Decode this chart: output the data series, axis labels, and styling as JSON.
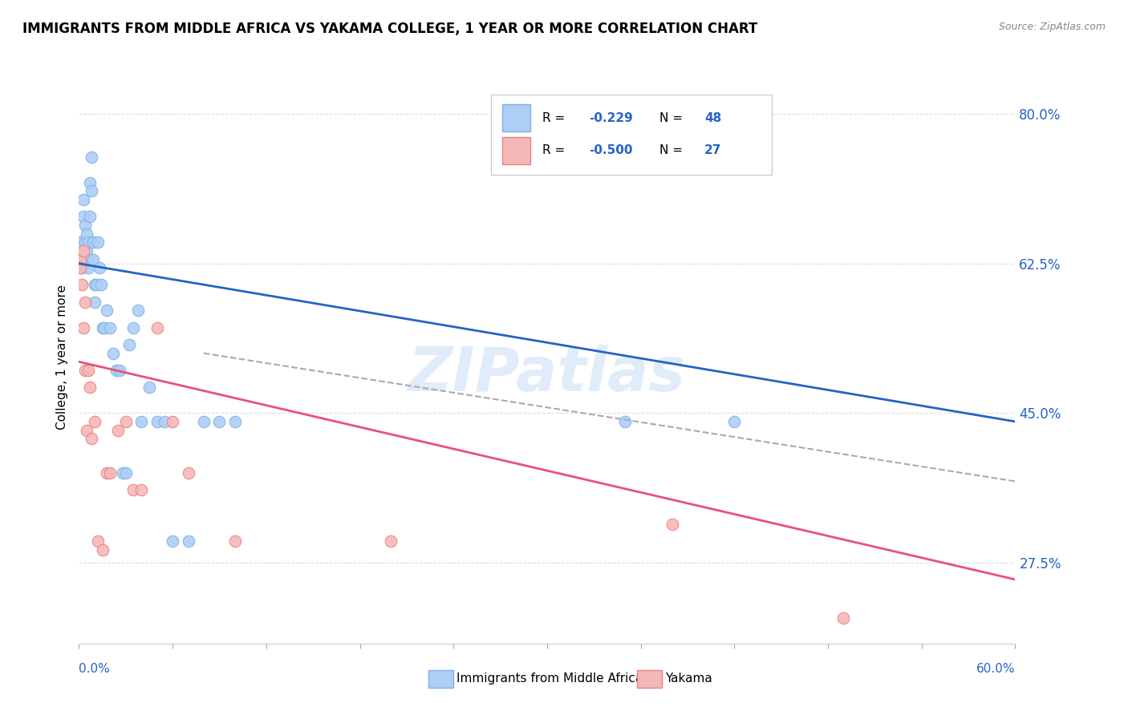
{
  "title": "IMMIGRANTS FROM MIDDLE AFRICA VS YAKAMA COLLEGE, 1 YEAR OR MORE CORRELATION CHART",
  "source": "Source: ZipAtlas.com",
  "ylabel": "College, 1 year or more",
  "ylabel_ticks": [
    "27.5%",
    "45.0%",
    "62.5%",
    "80.0%"
  ],
  "ylabel_tick_vals": [
    0.275,
    0.45,
    0.625,
    0.8
  ],
  "xlim": [
    0.0,
    0.6
  ],
  "ylim": [
    0.18,
    0.85
  ],
  "blue_scatter_color": "#aecef5",
  "blue_scatter_edge": "#7eb3e8",
  "pink_scatter_color": "#f5b8b8",
  "pink_scatter_edge": "#f08080",
  "blue_line_color": "#2563c7",
  "pink_line_color": "#e85080",
  "dashed_line_color": "#aaaaaa",
  "r_color": "#2563c7",
  "watermark_color": "#c8ddf5",
  "blue_scatter_x": [
    0.001,
    0.001,
    0.002,
    0.003,
    0.003,
    0.004,
    0.004,
    0.005,
    0.005,
    0.005,
    0.006,
    0.006,
    0.006,
    0.007,
    0.007,
    0.008,
    0.008,
    0.009,
    0.009,
    0.01,
    0.01,
    0.011,
    0.012,
    0.013,
    0.014,
    0.015,
    0.016,
    0.018,
    0.02,
    0.022,
    0.024,
    0.026,
    0.028,
    0.03,
    0.032,
    0.035,
    0.038,
    0.04,
    0.045,
    0.05,
    0.055,
    0.06,
    0.07,
    0.08,
    0.09,
    0.1,
    0.35,
    0.42
  ],
  "blue_scatter_y": [
    0.63,
    0.65,
    0.62,
    0.7,
    0.68,
    0.65,
    0.67,
    0.63,
    0.64,
    0.66,
    0.63,
    0.65,
    0.62,
    0.68,
    0.72,
    0.75,
    0.71,
    0.63,
    0.65,
    0.6,
    0.58,
    0.6,
    0.65,
    0.62,
    0.6,
    0.55,
    0.55,
    0.57,
    0.55,
    0.52,
    0.5,
    0.5,
    0.38,
    0.38,
    0.53,
    0.55,
    0.57,
    0.44,
    0.48,
    0.44,
    0.44,
    0.3,
    0.3,
    0.44,
    0.44,
    0.44,
    0.44,
    0.44
  ],
  "pink_scatter_x": [
    0.001,
    0.001,
    0.002,
    0.003,
    0.003,
    0.004,
    0.004,
    0.005,
    0.006,
    0.007,
    0.008,
    0.01,
    0.012,
    0.015,
    0.018,
    0.02,
    0.025,
    0.03,
    0.035,
    0.04,
    0.05,
    0.06,
    0.07,
    0.1,
    0.2,
    0.38,
    0.49
  ],
  "pink_scatter_y": [
    0.63,
    0.62,
    0.6,
    0.55,
    0.64,
    0.58,
    0.5,
    0.43,
    0.5,
    0.48,
    0.42,
    0.44,
    0.3,
    0.29,
    0.38,
    0.38,
    0.43,
    0.44,
    0.36,
    0.36,
    0.55,
    0.44,
    0.38,
    0.3,
    0.3,
    0.32,
    0.21
  ],
  "blue_line_x": [
    0.0,
    0.6
  ],
  "blue_line_y": [
    0.625,
    0.44
  ],
  "pink_line_x": [
    0.0,
    0.6
  ],
  "pink_line_y": [
    0.51,
    0.255
  ],
  "dashed_line_x": [
    0.08,
    0.6
  ],
  "dashed_line_y": [
    0.52,
    0.37
  ],
  "legend_R_blue": "-0.229",
  "legend_N_blue": "48",
  "legend_R_pink": "-0.500",
  "legend_N_pink": "27"
}
